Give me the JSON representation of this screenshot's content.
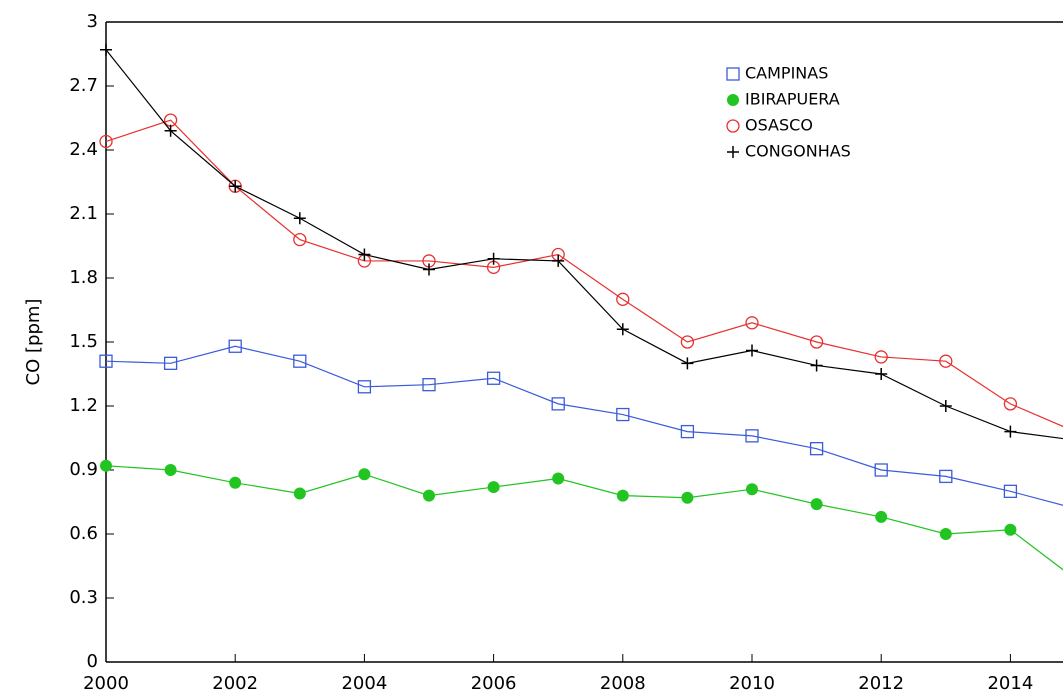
{
  "chart_data": {
    "type": "line",
    "y_label": "CO [ppm]",
    "x": [
      2000,
      2001,
      2002,
      2003,
      2004,
      2005,
      2006,
      2007,
      2008,
      2009,
      2010,
      2011,
      2012,
      2013,
      2014,
      2015
    ],
    "series": [
      {
        "name": "CAMPINAS",
        "color": "#3b5bdb",
        "marker": "square",
        "values": [
          1.41,
          1.4,
          1.48,
          1.41,
          1.29,
          1.3,
          1.33,
          1.21,
          1.16,
          1.08,
          1.06,
          1.0,
          0.9,
          0.87,
          0.8,
          0.72
        ]
      },
      {
        "name": "IBIRAPUERA",
        "color": "#22c422",
        "marker": "filled-circle",
        "values": [
          0.92,
          0.9,
          0.84,
          0.79,
          0.88,
          0.78,
          0.82,
          0.86,
          0.78,
          0.77,
          0.81,
          0.74,
          0.68,
          0.6,
          0.62,
          0.39
        ]
      },
      {
        "name": "OSASCO",
        "color": "#e83030",
        "marker": "circle",
        "values": [
          2.44,
          2.54,
          2.23,
          1.98,
          1.88,
          1.88,
          1.85,
          1.91,
          1.7,
          1.5,
          1.59,
          1.5,
          1.43,
          1.41,
          1.21,
          1.08
        ]
      },
      {
        "name": "CONGONHAS",
        "color": "#000000",
        "marker": "plus",
        "values": [
          2.87,
          2.49,
          2.23,
          2.08,
          1.91,
          1.84,
          1.89,
          1.88,
          1.56,
          1.4,
          1.46,
          1.39,
          1.35,
          1.2,
          1.08,
          1.04
        ]
      }
    ],
    "xlim": [
      2000,
      2015
    ],
    "ylim": [
      0,
      3
    ],
    "xticks": [
      2000,
      2002,
      2004,
      2006,
      2008,
      2010,
      2012,
      2014
    ],
    "yticks": [
      0,
      0.3,
      0.6,
      0.9,
      1.2,
      1.5,
      1.8,
      2.1,
      2.4,
      2.7,
      3
    ],
    "grid": false,
    "legend": "upper right"
  }
}
